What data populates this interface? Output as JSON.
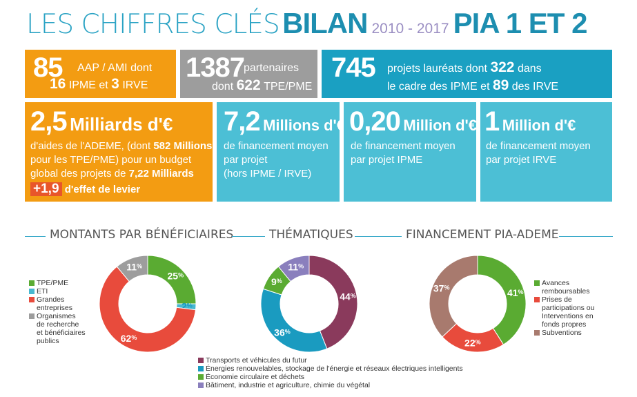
{
  "title": {
    "part1": "LES CHIFFRES CLÉS",
    "part2": "BILAN",
    "years": "2010 - 2017",
    "part3": "PIA 1 ET 2"
  },
  "kpis": {
    "aap": {
      "value": "85",
      "text1": "AAP / AMI dont",
      "ipme_value": "16",
      "ipme_label": "IPME et",
      "irve_value": "3",
      "irve_label": "IRVE"
    },
    "partners": {
      "value": "1387",
      "label": "partenaires",
      "prefix": "dont",
      "tpe_value": "622",
      "tpe_label": "TPE/PME"
    },
    "projects": {
      "value": "745",
      "text1": "projets lauréats dont",
      "ipme_value": "322",
      "text2": "dans",
      "text3": "le cadre des IPME et",
      "irve_value": "89",
      "text4": "des IRVE"
    },
    "aides": {
      "value": "2,5",
      "unit": "Milliards d'€",
      "line1a": "d'aides de l'ADEME, (dont",
      "line1b": "582 Millions",
      "line2": "pour les TPE/PME) pour un budget",
      "line3a": "global des projets de",
      "line3b": "7,22 Milliards",
      "levier_value": "+1,9",
      "levier_label": "d'effet de levier"
    },
    "moyen": {
      "value": "7,2",
      "unit": "Millions d'€",
      "line1": "de financement moyen",
      "line2": "par projet",
      "line3": "(hors IPME / IRVE)"
    },
    "ipme": {
      "value": "0,20",
      "unit": "Million d'€",
      "line1": "de financement moyen",
      "line2": "par projet IPME"
    },
    "irve": {
      "value": "1",
      "unit": "Million d'€",
      "line1": "de financement moyen",
      "line2": "par projet IRVE"
    }
  },
  "sections": {
    "beneficiaires": "MONTANTS PAR BÉNÉFICIAIRES",
    "thematiques": "THÉMATIQUES",
    "financement": "FINANCEMENT PIA-ADEME"
  },
  "chart_data": [
    {
      "type": "pie",
      "title": "MONTANTS PAR BÉNÉFICIAIRES",
      "labels": [
        "TPE/PME",
        "ETI",
        "Grandes entreprises",
        "Organismes de recherche et bénéficiaires publics"
      ],
      "values": [
        25,
        2,
        62,
        11
      ],
      "value_labels": [
        "25",
        "2",
        "62",
        "11"
      ],
      "colors": [
        "#5aab32",
        "#48b8d0",
        "#e84b3c",
        "#9d9d9d"
      ]
    },
    {
      "type": "pie",
      "title": "THÉMATIQUES",
      "labels": [
        "Transports et véhicules du futur",
        "Énergies renouvelables, stockage de l'énergie et réseaux électriques intelligents",
        "Économie circulaire et déchets",
        "Bâtiment, industrie et agriculture, chimie du végétal"
      ],
      "values": [
        44,
        36,
        9,
        11
      ],
      "value_labels": [
        "44",
        "36",
        "9",
        "11"
      ],
      "colors": [
        "#8a3a5c",
        "#1a9bc0",
        "#5aab32",
        "#8a7fbd"
      ]
    },
    {
      "type": "pie",
      "title": "FINANCEMENT PIA-ADEME",
      "labels": [
        "Avances remboursables",
        "Prises de participations ou Interventions en fonds propres",
        "Subventions"
      ],
      "values": [
        41,
        22,
        37
      ],
      "value_labels": [
        "41",
        "22",
        "37"
      ],
      "colors": [
        "#5aab32",
        "#e84b3c",
        "#a87a6e"
      ]
    }
  ],
  "legends": {
    "beneficiaires": [
      "TPE/PME",
      "ETI",
      "Grandes entreprises",
      "Organismes de recherche et bénéficiaires publics"
    ],
    "thematiques": [
      "Transports et véhicules du futur",
      "Énergies renouvelables, stockage de l'énergie et réseaux électriques intelligents",
      "Économie circulaire et déchets",
      "Bâtiment, industrie et agriculture, chimie du végétal"
    ],
    "financement": [
      "Avances remboursables",
      "Prises de participations ou Interventions en fonds propres",
      "Subventions"
    ]
  },
  "pct_sign": "%"
}
